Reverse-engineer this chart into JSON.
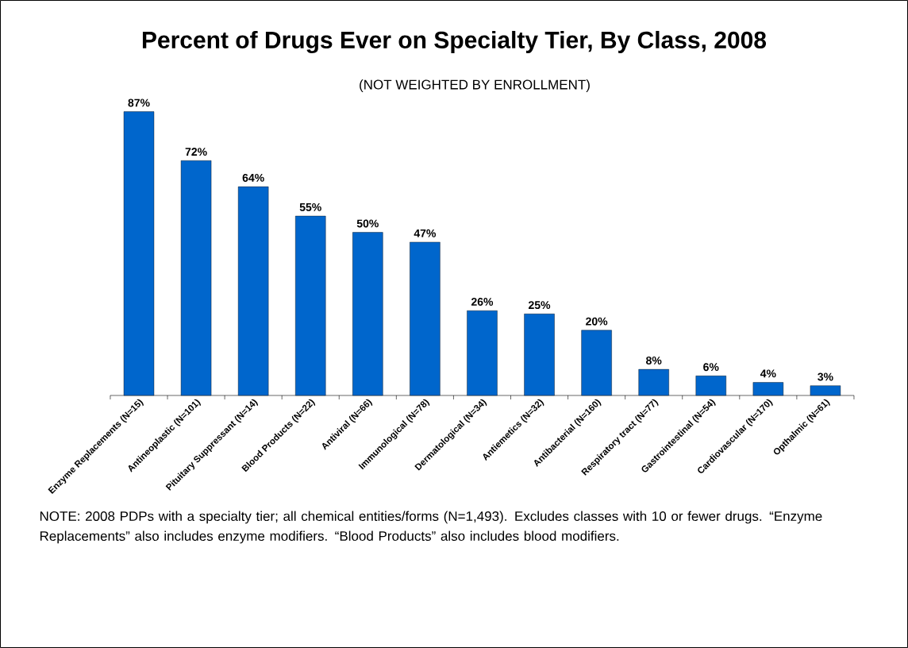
{
  "chart_data": {
    "type": "bar",
    "title": "Percent of Drugs Ever on Specialty Tier, By Class, 2008",
    "subtitle": "(NOT WEIGHTED BY ENROLLMENT)",
    "categories": [
      "Enzyme Replacements (N=15)",
      "Antineoplastic (N=101)",
      "Pituitary Suppressant (N=14)",
      "Blood Products (N=22)",
      "Antiviral (N=66)",
      "Immunological (N=78)",
      "Dermatological (N=34)",
      "Antiemetics (N=32)",
      "Antibacterial (N=160)",
      "Respiratory tract (N=77)",
      "Gastrointestinal (N=54)",
      "Cardiovascular (N=170)",
      "Opthalmic (N=61)"
    ],
    "values": [
      87,
      72,
      64,
      55,
      50,
      47,
      26,
      25,
      20,
      8,
      6,
      4,
      3
    ],
    "value_labels": [
      "87%",
      "72%",
      "64%",
      "55%",
      "50%",
      "47%",
      "26%",
      "25%",
      "20%",
      "8%",
      "6%",
      "4%",
      "3%"
    ],
    "color": "#0066cc",
    "annotations": [
      "NOTE: 2008 PDPs with a specialty tier; all chemical entities/forms (N=1,493).  Excludes classes with 10 or fewer drugs.  “Enzyme Replacements” also includes enzyme modifiers.  “Blood Products” also includes blood modifiers."
    ]
  }
}
